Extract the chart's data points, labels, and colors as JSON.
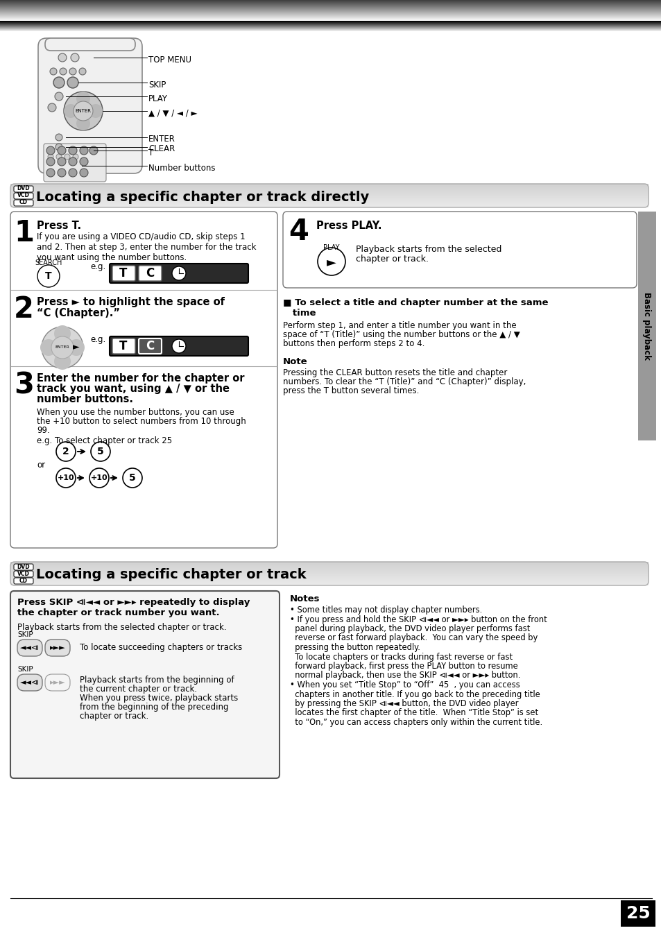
{
  "page_bg": "#ffffff",
  "section1_title": "Locating a specific chapter or track directly",
  "section2_title": "Locating a specific chapter or track",
  "sidebar_text": "Basic playback",
  "page_number": "25",
  "step1_title": "Press T.",
  "step1_body": "If you are using a VIDEO CD/audio CD, skip steps 1\nand 2. Then at step 3, enter the number for the track\nyou want using the number buttons.",
  "step2_title_l1": "Press ► to highlight the space of",
  "step2_title_l2": "“C (Chapter).”",
  "step3_l1": "Enter the number for the chapter or",
  "step3_l2": "track you want, using ▲ / ▼ or the",
  "step3_l3": "number buttons.",
  "step3_body1": "When you use the number buttons, you can use",
  "step3_body2": "the +10 button to select numbers from 10 through",
  "step3_body3": "99.",
  "step3_eg": "e.g. To select chapter or track 25",
  "step4_title": "Press PLAY.",
  "step4_body1": "Playback starts from the selected",
  "step4_body2": "chapter or track.",
  "select_l1": "■ To select a title and chapter number at the same",
  "select_l2": "   time",
  "select_body1": "Perform step 1, and enter a title number you want in the",
  "select_body2": "space of “T (Title)” using the number buttons or the ▲ / ▼",
  "select_body3": "buttons then perform steps 2 to 4.",
  "note_title": "Note",
  "note_body1": "Pressing the CLEAR button resets the title and chapter",
  "note_body2": "numbers. To clear the “T (Title)” and “C (Chapter)” display,",
  "note_body3": "press the T button several times.",
  "s2_press1": "Press SKIP ⧏◄◄ or ►►▸ repeatedly to display",
  "s2_press2": "the chapter or track number you want.",
  "s2_playback": "Playback starts from the selected chapter or track.",
  "s2_skip1_text": "To locate succeeding chapters or tracks",
  "s2_skip2_text1": "Playback starts from the beginning of",
  "s2_skip2_text2": "the current chapter or track.",
  "s2_skip2_text3": "When you press twice, playback starts",
  "s2_skip2_text4": "from the beginning of the preceding",
  "s2_skip2_text5": "chapter or track.",
  "notes_title": "Notes",
  "notes1": "• Some titles may not display chapter numbers.",
  "notes2a": "• If you press and hold the SKIP ⧏◄◄ or ►►▸ button on the front",
  "notes2b": "  panel during playback, the DVD video player performs fast",
  "notes2c": "  reverse or fast forward playback.  You can vary the speed by",
  "notes2d": "  pressing the button repeatedly.",
  "notes2e": "  To locate chapters or tracks during fast reverse or fast",
  "notes2f": "  forward playback, first press the PLAY button to resume",
  "notes2g": "  normal playback, then use the SKIP ⧏◄◄ or ►►▸ button.",
  "notes3a": "• When you set “Title Stop” to “Off”  45  , you can access",
  "notes3b": "  chapters in another title. If you go back to the preceding title",
  "notes3c": "  by pressing the SKIP ⧏◄◄ button, the DVD video player",
  "notes3d": "  locates the first chapter of the title.  When “Title Stop” is set",
  "notes3e": "  to “On,” you can access chapters only within the current title."
}
